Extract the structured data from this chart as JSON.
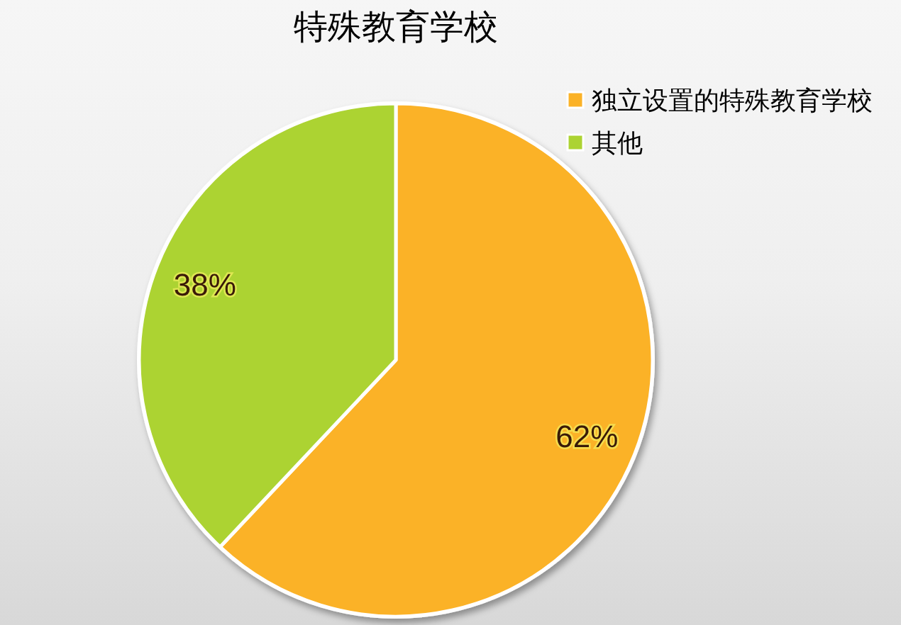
{
  "chart_data": {
    "type": "pie",
    "title": "特殊教育学校",
    "categories": [
      "独立设置的特殊教育学校",
      "其他"
    ],
    "values": [
      62,
      38
    ],
    "colors": [
      "#fbb227",
      "#acd332"
    ],
    "value_labels": [
      "62%",
      "38%"
    ],
    "legend": "right"
  }
}
